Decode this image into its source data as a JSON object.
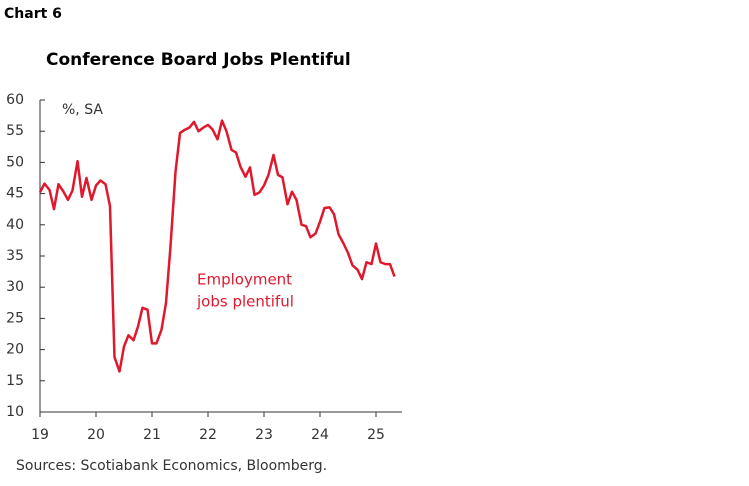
{
  "chart_data": {
    "type": "line",
    "label": "Chart 6",
    "title": "Conference Board Jobs Plentiful",
    "unit_note": "%, SA",
    "annotation": [
      "Employment",
      "jobs plentiful"
    ],
    "source": "Sources: Scotiabank Economics, Bloomberg.",
    "x": [
      19.0,
      19.08,
      19.17,
      19.25,
      19.33,
      19.42,
      19.5,
      19.58,
      19.67,
      19.75,
      19.83,
      19.92,
      20.0,
      20.08,
      20.17,
      20.25,
      20.33,
      20.42,
      20.5,
      20.58,
      20.67,
      20.75,
      20.83,
      20.92,
      21.0,
      21.08,
      21.17,
      21.25,
      21.33,
      21.42,
      21.5,
      21.58,
      21.67,
      21.75,
      21.83,
      21.92,
      22.0,
      22.08,
      22.17,
      22.25,
      22.33,
      22.42,
      22.5,
      22.58,
      22.67,
      22.75,
      22.83,
      22.92,
      23.0,
      23.08,
      23.17,
      23.25,
      23.33,
      23.42,
      23.5,
      23.58,
      23.67,
      23.75,
      23.83,
      23.92,
      24.0,
      24.08,
      24.17,
      24.25,
      24.33,
      24.42,
      24.5,
      24.58,
      24.67,
      24.75,
      24.83,
      24.92,
      25.0,
      25.08,
      25.17,
      25.25,
      25.33
    ],
    "series": [
      {
        "name": "Employment jobs plentiful",
        "color": "#e0182d",
        "values": [
          45.2,
          46.6,
          45.6,
          42.5,
          46.5,
          45.3,
          44.0,
          45.5,
          50.2,
          44.5,
          47.5,
          44.0,
          46.3,
          47.1,
          46.5,
          43.0,
          18.8,
          16.5,
          20.5,
          22.3,
          21.5,
          23.7,
          26.7,
          26.4,
          21.0,
          21.0,
          23.2,
          27.5,
          36.5,
          48.5,
          54.7,
          55.2,
          55.6,
          56.5,
          55.0,
          55.6,
          56.0,
          55.3,
          53.7,
          56.7,
          55.0,
          52.0,
          51.6,
          49.3,
          47.7,
          49.2,
          44.8,
          45.2,
          46.3,
          48.0,
          51.2,
          48.0,
          47.6,
          43.3,
          45.3,
          44.0,
          40.0,
          39.8,
          38.0,
          38.6,
          40.5,
          42.7,
          42.8,
          41.7,
          38.5,
          37.0,
          35.5,
          33.5,
          32.8,
          31.3,
          34.0,
          33.7,
          37.0,
          34.0,
          33.7,
          33.7,
          31.7
        ]
      }
    ],
    "xlim": [
      19,
      25.4
    ],
    "xticks": [
      19,
      20,
      21,
      22,
      23,
      24,
      25
    ],
    "ylim": [
      10,
      60
    ],
    "yticks": [
      10,
      15,
      20,
      25,
      30,
      35,
      40,
      45,
      50,
      55,
      60
    ]
  }
}
